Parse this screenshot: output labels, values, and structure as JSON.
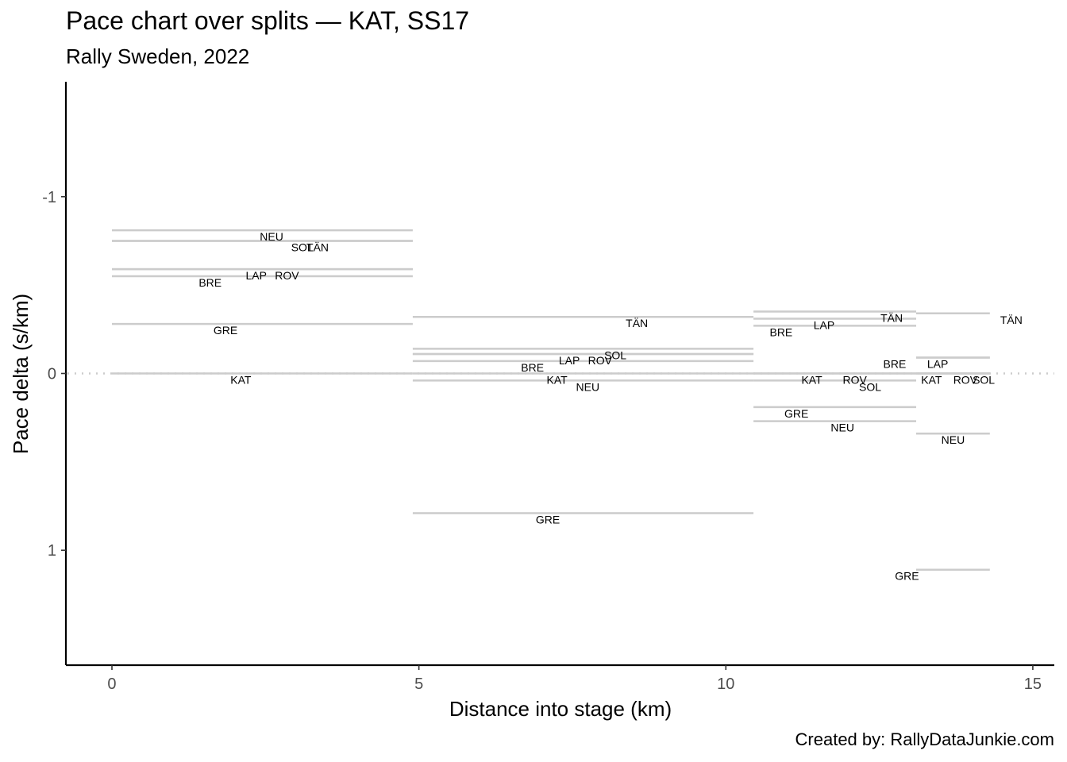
{
  "chart_data": {
    "type": "line",
    "title": "Pace chart over splits — KAT, SS17",
    "subtitle": "Rally Sweden, 2022",
    "caption": "Created by: RallyDataJunkie.com",
    "xlabel": "Distance into stage (km)",
    "ylabel": "Pace delta (s/km)",
    "xlim": [
      -0.75,
      15.35
    ],
    "ylim": [
      1.65,
      -1.65
    ],
    "y_reversed": true,
    "x_ticks": [
      0,
      5,
      10,
      15
    ],
    "x_tick_labels": [
      "0",
      "5",
      "10",
      "15"
    ],
    "y_ticks": [
      -1,
      0,
      1
    ],
    "y_tick_labels": [
      "-1",
      "0",
      "1"
    ],
    "reference_line": {
      "y": 0,
      "style": "dotted"
    },
    "splits": [
      {
        "x_start": 0,
        "x_end": 4.9,
        "drivers": [
          {
            "code": "NEU",
            "value": -0.81,
            "label_x": 2.6
          },
          {
            "code": "SOL",
            "value": -0.75,
            "label_x": 3.1
          },
          {
            "code": "TÄN",
            "value": -0.75,
            "label_x": 3.35
          },
          {
            "code": "LAP",
            "value": -0.59,
            "label_x": 2.35
          },
          {
            "code": "ROV",
            "value": -0.59,
            "label_x": 2.85
          },
          {
            "code": "BRE",
            "value": -0.55,
            "label_x": 1.6
          },
          {
            "code": "GRE",
            "value": -0.28,
            "label_x": 1.85
          },
          {
            "code": "KAT",
            "value": 0,
            "label_x": 2.1
          }
        ]
      },
      {
        "x_start": 4.9,
        "x_end": 10.45,
        "drivers": [
          {
            "code": "TÄN",
            "value": -0.32,
            "label_x": 8.55
          },
          {
            "code": "SOL",
            "value": -0.14,
            "label_x": 8.2
          },
          {
            "code": "LAP",
            "value": -0.11,
            "label_x": 7.45
          },
          {
            "code": "ROV",
            "value": -0.11,
            "label_x": 7.95
          },
          {
            "code": "BRE",
            "value": -0.07,
            "label_x": 6.85
          },
          {
            "code": "KAT",
            "value": 0,
            "label_x": 7.25
          },
          {
            "code": "NEU",
            "value": 0.04,
            "label_x": 7.75
          },
          {
            "code": "GRE",
            "value": 0.79,
            "label_x": 7.1
          }
        ]
      },
      {
        "x_start": 10.45,
        "x_end": 13.1,
        "drivers": [
          {
            "code": "TÄN",
            "value": -0.35,
            "label_x": 12.7
          },
          {
            "code": "LAP",
            "value": -0.31,
            "label_x": 11.6
          },
          {
            "code": "BRE",
            "value": -0.27,
            "label_x": 10.9
          },
          {
            "code": "KAT",
            "value": 0,
            "label_x": 11.4
          },
          {
            "code": "ROV",
            "value": 0,
            "label_x": 12.1
          },
          {
            "code": "SOL",
            "value": 0.04,
            "label_x": 12.35
          },
          {
            "code": "GRE",
            "value": 0.19,
            "label_x": 11.15
          },
          {
            "code": "NEU",
            "value": 0.27,
            "label_x": 11.9
          }
        ]
      },
      {
        "x_start": 13.1,
        "x_end": 14.3,
        "drivers": [
          {
            "code": "TÄN",
            "value": -0.34,
            "label_x": 14.65
          },
          {
            "code": "BRE",
            "value": -0.09,
            "label_x": 12.75
          },
          {
            "code": "LAP",
            "value": -0.09,
            "label_x": 13.45
          },
          {
            "code": "KAT",
            "value": 0,
            "label_x": 13.35
          },
          {
            "code": "ROV",
            "value": 0,
            "label_x": 13.9
          },
          {
            "code": "SOL",
            "value": 0,
            "label_x": 14.2
          },
          {
            "code": "NEU",
            "value": 0.34,
            "label_x": 13.7
          },
          {
            "code": "GRE",
            "value": 1.11,
            "label_x": 12.95
          }
        ]
      }
    ]
  }
}
